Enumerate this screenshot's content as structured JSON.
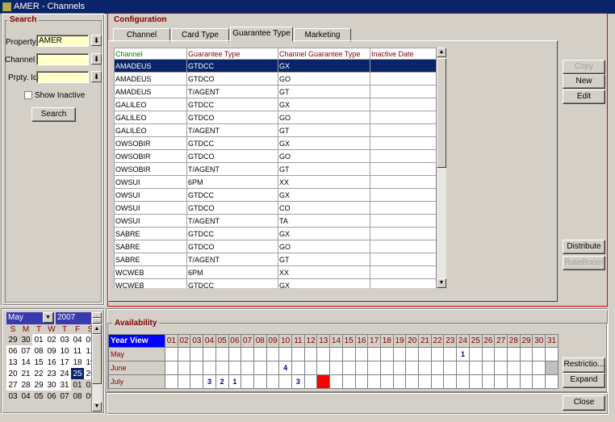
{
  "window": {
    "title": "AMER - Channels"
  },
  "search": {
    "legend": "Search",
    "property_label": "Property",
    "property_value": "AMER",
    "channel_label": "Channel",
    "channel_value": "",
    "prptyid_label": "Prpty. Id",
    "prptyid_value": "",
    "show_inactive_label": "Show Inactive",
    "show_inactive_checked": false,
    "search_button": "Search"
  },
  "config": {
    "legend": "Configuration",
    "tabs": [
      {
        "label": "Channel"
      },
      {
        "label": "Card Type"
      },
      {
        "label": "Guarantee Type",
        "active": true
      },
      {
        "label": "Marketing"
      }
    ],
    "columns": [
      "Channel",
      "Guarantee Type",
      "Channel Guarantee Type",
      "Inactive Date"
    ],
    "rows": [
      [
        "AMADEUS",
        "GTDCC",
        "GX",
        ""
      ],
      [
        "AMADEUS",
        "GTDCO",
        "GO",
        ""
      ],
      [
        "AMADEUS",
        "T/AGENT",
        "GT",
        ""
      ],
      [
        "GALILEO",
        "GTDCC",
        "GX",
        ""
      ],
      [
        "GALILEO",
        "GTDCO",
        "GO",
        ""
      ],
      [
        "GALILEO",
        "T/AGENT",
        "GT",
        ""
      ],
      [
        "OWSOBIR",
        "GTDCC",
        "GX",
        ""
      ],
      [
        "OWSOBIR",
        "GTDCO",
        "GO",
        ""
      ],
      [
        "OWSOBIR",
        "T/AGENT",
        "GT",
        ""
      ],
      [
        "OWSUI",
        "6PM",
        "XX",
        ""
      ],
      [
        "OWSUI",
        "GTDCC",
        "GX",
        ""
      ],
      [
        "OWSUI",
        "GTDCO",
        "CO",
        ""
      ],
      [
        "OWSUI",
        "T/AGENT",
        "TA",
        ""
      ],
      [
        "SABRE",
        "GTDCC",
        "GX",
        ""
      ],
      [
        "SABRE",
        "GTDCO",
        "GO",
        ""
      ],
      [
        "SABRE",
        "T/AGENT",
        "GT",
        ""
      ],
      [
        "WCWEB",
        "6PM",
        "XX",
        ""
      ],
      [
        "WCWEB",
        "GTDCC",
        "GX",
        ""
      ]
    ],
    "selected_row": 0,
    "buttons": {
      "copy": "Copy",
      "new": "New",
      "edit": "Edit",
      "distribute": "Distribute",
      "rateroom": "RateRoom"
    }
  },
  "calendar": {
    "month": "May",
    "year": "2007",
    "weekdays": [
      "S",
      "M",
      "T",
      "W",
      "T",
      "F",
      "S"
    ],
    "weeks": [
      [
        "29",
        "30",
        "01",
        "02",
        "03",
        "04",
        "05"
      ],
      [
        "06",
        "07",
        "08",
        "09",
        "10",
        "11",
        "12"
      ],
      [
        "13",
        "14",
        "15",
        "16",
        "17",
        "18",
        "19"
      ],
      [
        "20",
        "21",
        "22",
        "23",
        "24",
        "25",
        "26"
      ],
      [
        "27",
        "28",
        "29",
        "30",
        "31",
        "01",
        "02"
      ],
      [
        "03",
        "04",
        "05",
        "06",
        "07",
        "08",
        "09"
      ]
    ],
    "selected": "25"
  },
  "availability": {
    "legend": "Availability",
    "year_view_label": "Year View",
    "days": [
      "01",
      "02",
      "03",
      "04",
      "05",
      "06",
      "07",
      "08",
      "09",
      "10",
      "11",
      "12",
      "13",
      "14",
      "15",
      "16",
      "17",
      "18",
      "19",
      "20",
      "21",
      "22",
      "23",
      "24",
      "25",
      "26",
      "27",
      "28",
      "29",
      "30",
      "31"
    ],
    "months": [
      {
        "name": "May",
        "values": {
          "24": "1"
        }
      },
      {
        "name": "June",
        "values": {
          "10": "4"
        },
        "unavailable": [
          "31"
        ]
      },
      {
        "name": "July",
        "values": {
          "04": "3",
          "05": "2",
          "06": "1",
          "11": "3"
        },
        "highlight": [
          "13"
        ]
      }
    ],
    "highlight_color": "#ff0000",
    "buttons": {
      "restrictions": "Restrictio...",
      "expand": "Expand"
    }
  },
  "footer": {
    "close": "Close"
  }
}
